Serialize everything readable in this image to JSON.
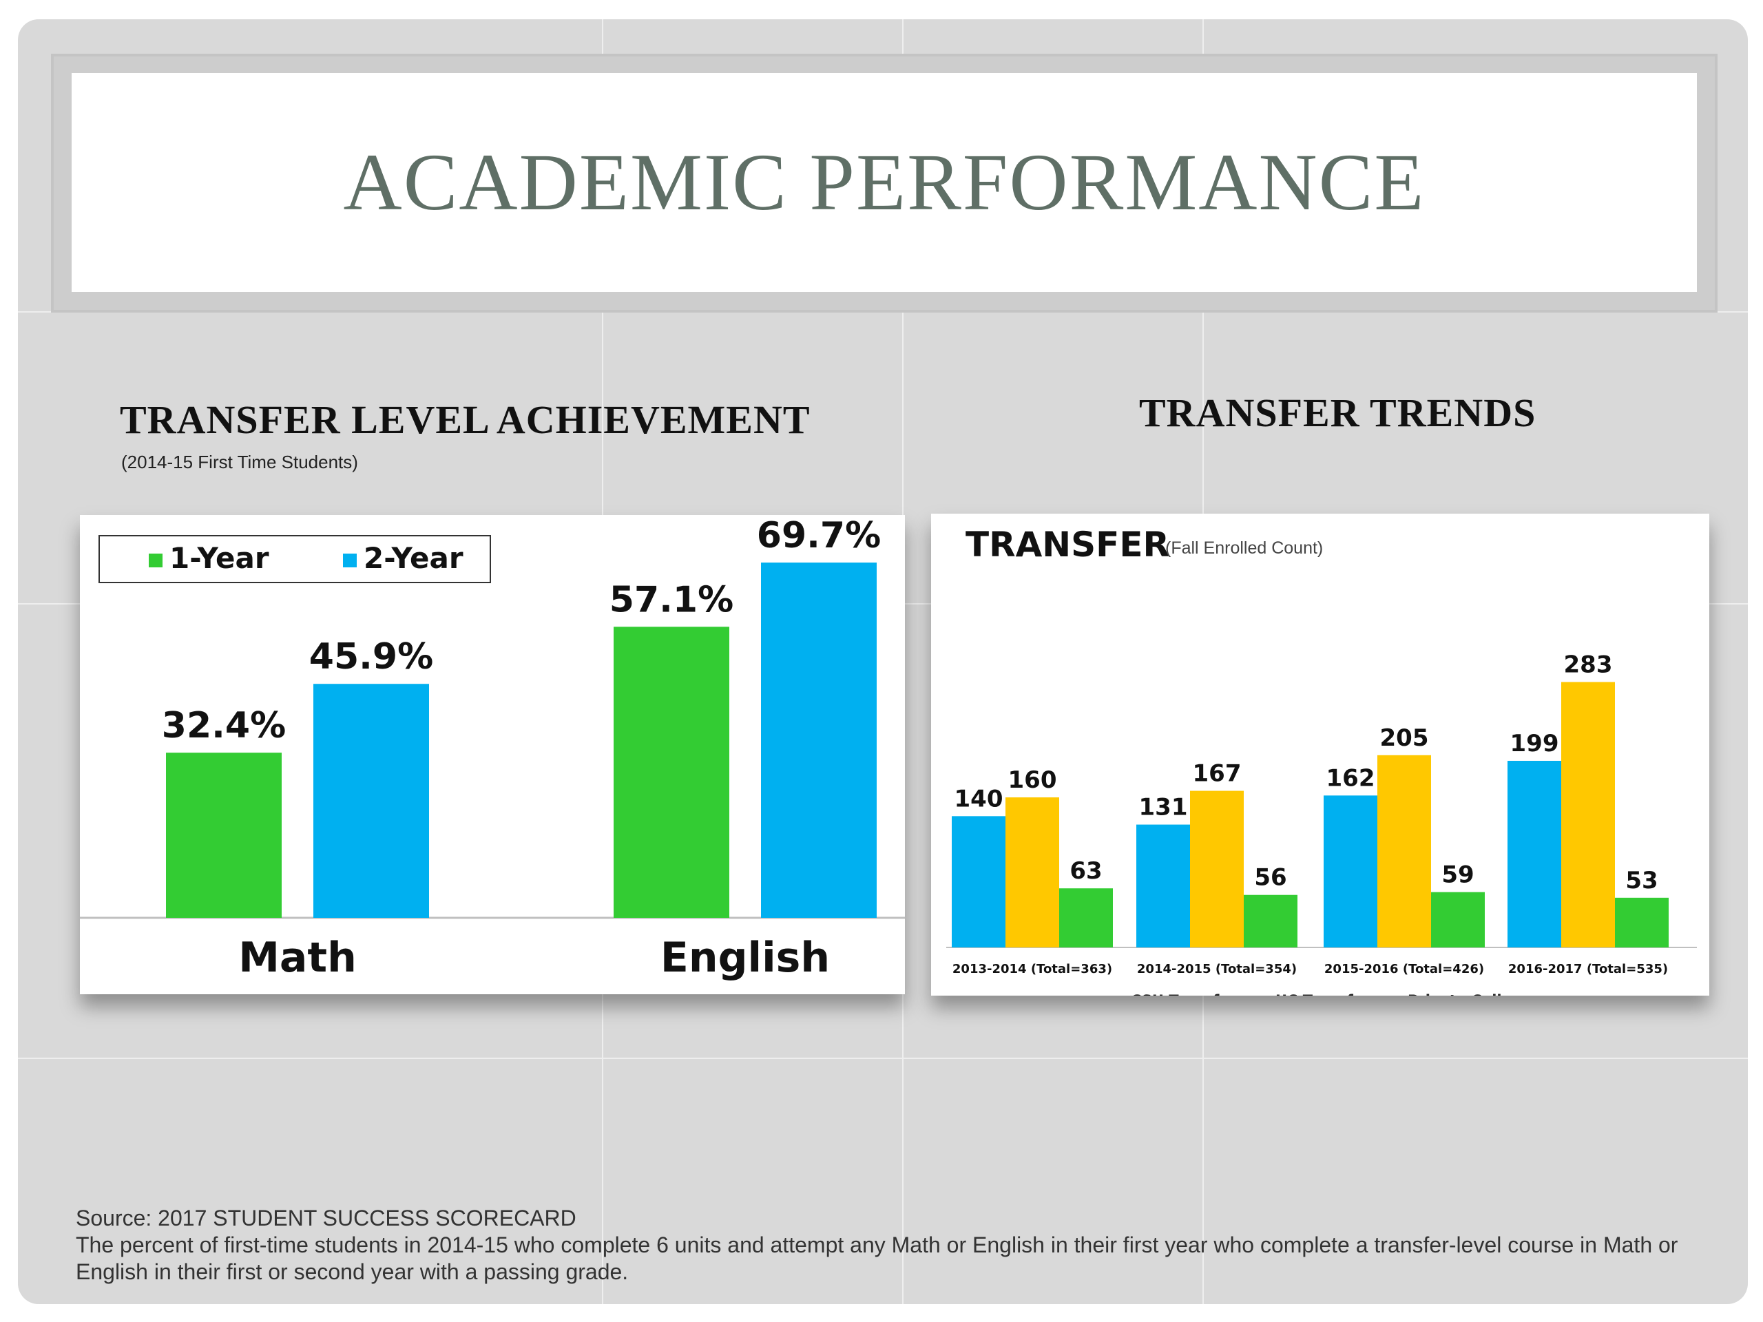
{
  "slide": {
    "title": "ACADEMIC PERFORMANCE",
    "left_heading": "TRANSFER LEVEL ACHIEVEMENT",
    "left_subheading": "(2014-15 First Time Students)",
    "right_heading": "TRANSFER TRENDS",
    "source_line": "Source: 2017 STUDENT SUCCESS SCORECARD",
    "footnote": "The percent of first-time students in 2014-15 who complete 6 units and attempt any Math or English in their first year who complete a transfer-level course in Math or English in their first or second year with a passing grade."
  },
  "chart_data": [
    {
      "type": "bar",
      "categories": [
        "Math",
        "English"
      ],
      "series": [
        {
          "name": "1-Year",
          "values": [
            32.4,
            57.1
          ],
          "labels": [
            "32.4%",
            "57.1%"
          ],
          "color": "#33cc33"
        },
        {
          "name": "2-Year",
          "values": [
            45.9,
            69.7
          ],
          "labels": [
            "45.9%",
            "69.7%"
          ],
          "color": "#00b0f0"
        }
      ],
      "ylim": [
        0,
        77
      ],
      "legend": "top-left",
      "grid": false
    },
    {
      "type": "bar",
      "title": "TRANSFER",
      "subtitle": "(Fall Enrolled Count)",
      "categories": [
        "2013-2014 (Total=363)",
        "2014-2015 (Total=354)",
        "2015-2016 (Total=426)",
        "2016-2017 (Total=535)"
      ],
      "series": [
        {
          "name": "CSU Transfer",
          "values": [
            140,
            131,
            162,
            199
          ],
          "color": "#00b0f0"
        },
        {
          "name": "UC Transfer",
          "values": [
            160,
            167,
            205,
            283
          ],
          "color": "#ffc800"
        },
        {
          "name": "Private Colleges",
          "values": [
            63,
            56,
            59,
            53
          ],
          "color": "#33cc33"
        }
      ],
      "ylim": [
        0,
        300
      ],
      "legend": "bottom",
      "grid": false
    }
  ]
}
